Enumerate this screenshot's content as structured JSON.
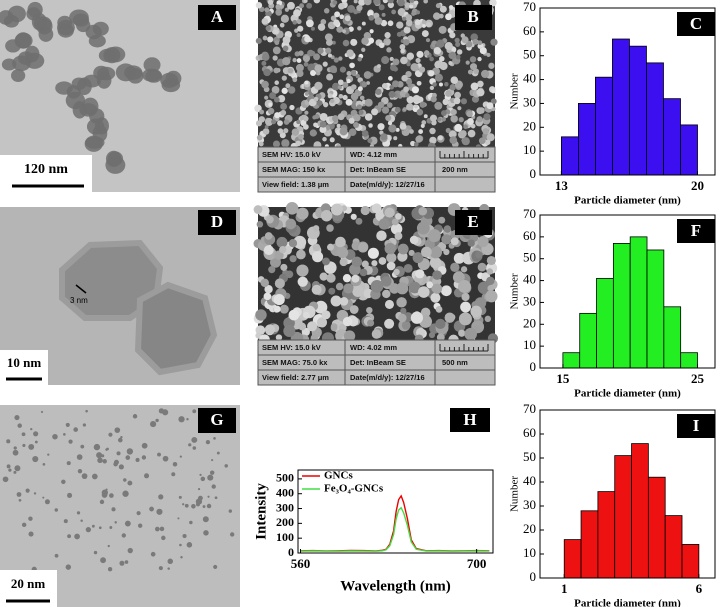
{
  "panels": [
    {
      "label": "A",
      "scale_bar": "120 nm"
    },
    {
      "label": "B",
      "sem_info": [
        "SEM HV: 15.0 kV",
        "WD: 4.12 mm",
        "SEM MAG: 150 kx",
        "Det: InBeam SE",
        "200 nm",
        "View field: 1.38 μm",
        "Date(m/d/y): 12/27/16"
      ]
    },
    {
      "label": "D",
      "scale_bar": "10 nm",
      "annotation": "3 nm"
    },
    {
      "label": "E",
      "sem_info": [
        "SEM HV: 15.0 kV",
        "WD: 4.02 mm",
        "SEM MAG: 75.0 kx",
        "Det: InBeam SE",
        "500 nm",
        "View field: 2.77 μm",
        "Date(m/d/y): 12/27/16"
      ]
    },
    {
      "label": "G",
      "scale_bar": "20 nm"
    }
  ],
  "chart_data": [
    {
      "type": "histogram",
      "panel_label": "C",
      "x_label": "Particle diameter (nm)",
      "y_label": "Number",
      "color": "#3b0ff0",
      "bins": [
        13,
        13.875,
        14.75,
        15.625,
        16.5,
        17.375,
        18.25,
        19.125,
        20
      ],
      "values": [
        16,
        30,
        41,
        57,
        54,
        47,
        32,
        21
      ],
      "xlim": [
        11.9,
        20.9
      ],
      "xticks": [
        13,
        20
      ],
      "ylim": [
        0,
        70
      ],
      "yticks": [
        0,
        10,
        20,
        30,
        40,
        50,
        60,
        70
      ]
    },
    {
      "type": "histogram",
      "panel_label": "F",
      "x_label": "Particle diameter (nm)",
      "y_label": "Number",
      "color": "#22ee22",
      "bins": [
        15,
        16.25,
        17.5,
        18.75,
        20,
        21.25,
        22.5,
        23.75,
        25
      ],
      "values": [
        7,
        25,
        41,
        57,
        60,
        54,
        28,
        7
      ],
      "xlim": [
        13.3,
        26.3
      ],
      "xticks": [
        15,
        25
      ],
      "ylim": [
        0,
        70
      ],
      "yticks": [
        0,
        10,
        20,
        30,
        40,
        50,
        60,
        70
      ]
    },
    {
      "type": "histogram",
      "panel_label": "I",
      "x_label": "Particle diameter (nm)",
      "y_label": "Number",
      "color": "#ee1111",
      "bins": [
        1,
        1.625,
        2.25,
        2.875,
        3.5,
        4.125,
        4.75,
        5.375,
        6
      ],
      "values": [
        16,
        28,
        36,
        51,
        56,
        42,
        26,
        14
      ],
      "xlim": [
        0.1,
        6.6
      ],
      "xticks": [
        1,
        6
      ],
      "ylim": [
        0,
        70
      ],
      "yticks": [
        0,
        10,
        20,
        30,
        40,
        50,
        60,
        70
      ]
    },
    {
      "type": "line",
      "panel_label": "H",
      "x_label": "Wavelength (nm)",
      "y_label": "Intensity",
      "x": [
        560,
        570,
        580,
        590,
        600,
        610,
        620,
        625,
        628,
        631,
        634,
        636,
        638,
        640,
        642,
        645,
        648,
        652,
        660,
        670,
        680,
        690,
        700,
        710
      ],
      "series": [
        {
          "name": "GNCs",
          "color": "#ee0000",
          "values": [
            15,
            16,
            14,
            15,
            17,
            16,
            14,
            18,
            25,
            60,
            150,
            280,
            360,
            385,
            340,
            230,
            90,
            30,
            15,
            16,
            14,
            15,
            16,
            15
          ]
        },
        {
          "name": "Fe₃O₄-GNCs",
          "color": "#44dd44",
          "values": [
            12,
            14,
            13,
            12,
            14,
            13,
            12,
            15,
            22,
            50,
            125,
            230,
            290,
            305,
            270,
            185,
            75,
            25,
            13,
            14,
            12,
            13,
            14,
            13
          ]
        }
      ],
      "xlim": [
        558,
        713
      ],
      "xticks": [
        560,
        700
      ],
      "ylim": [
        0,
        560
      ],
      "yticks": [
        0,
        100,
        200,
        300,
        400,
        500
      ]
    }
  ]
}
